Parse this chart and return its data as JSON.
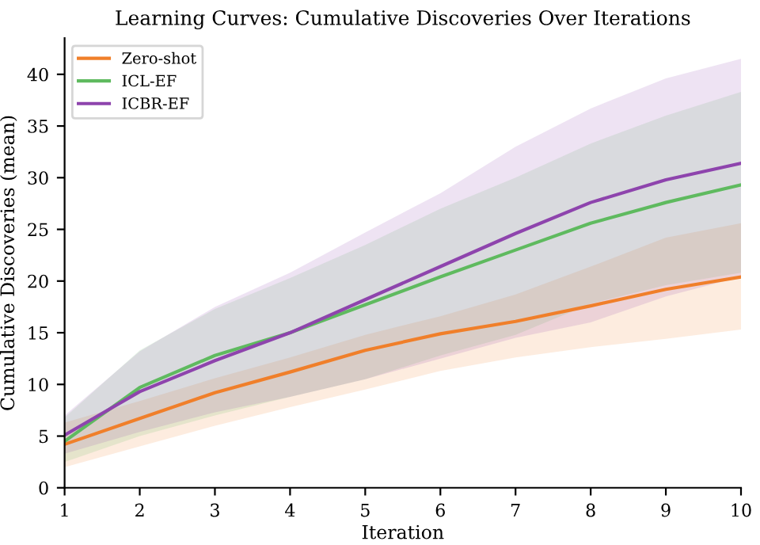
{
  "chart_data": {
    "type": "line",
    "title": "Learning Curves: Cumulative Discoveries Over Iterations",
    "xlabel": "Iteration",
    "ylabel": "Cumulative Discoveries (mean)",
    "x": [
      1,
      2,
      3,
      4,
      5,
      6,
      7,
      8,
      9,
      10
    ],
    "series": [
      {
        "name": "Zero-shot",
        "color": "#f07f2a",
        "values": [
          4.2,
          6.7,
          9.2,
          11.2,
          13.3,
          14.9,
          16.1,
          17.6,
          19.2,
          20.4
        ],
        "lower": [
          2.0,
          4.0,
          6.0,
          7.8,
          9.5,
          11.3,
          12.6,
          13.6,
          14.4,
          15.3
        ],
        "upper": [
          6.3,
          8.4,
          10.6,
          12.6,
          14.8,
          16.6,
          18.7,
          21.4,
          24.2,
          25.6
        ]
      },
      {
        "name": "ICL-EF",
        "color": "#5fba5f",
        "values": [
          4.5,
          9.7,
          12.8,
          15.0,
          17.7,
          20.4,
          23.0,
          25.6,
          27.6,
          29.3
        ],
        "lower": [
          2.5,
          5.0,
          7.0,
          8.8,
          10.5,
          12.8,
          14.8,
          17.8,
          19.6,
          20.8
        ],
        "upper": [
          6.8,
          13.3,
          17.3,
          20.3,
          23.5,
          27.0,
          30.0,
          33.3,
          36.0,
          38.3
        ]
      },
      {
        "name": "ICBR-EF",
        "color": "#8e44ad",
        "values": [
          5.1,
          9.3,
          12.3,
          15.0,
          18.2,
          21.4,
          24.6,
          27.6,
          29.8,
          31.4
        ],
        "lower": [
          3.3,
          5.4,
          7.3,
          8.8,
          10.5,
          12.5,
          14.5,
          16.0,
          18.5,
          20.4
        ],
        "upper": [
          7.0,
          13.2,
          17.5,
          20.8,
          24.7,
          28.5,
          33.0,
          36.7,
          39.6,
          41.5
        ]
      }
    ],
    "xlim": [
      1,
      10
    ],
    "xticks": [
      1,
      2,
      3,
      4,
      5,
      6,
      7,
      8,
      9,
      10
    ],
    "ylim": [
      0,
      43.5
    ],
    "yticks": [
      0,
      5,
      10,
      15,
      20,
      25,
      30,
      35,
      40
    ],
    "grid": false,
    "legend": "top left",
    "marker": "none",
    "line_style": "solid"
  }
}
